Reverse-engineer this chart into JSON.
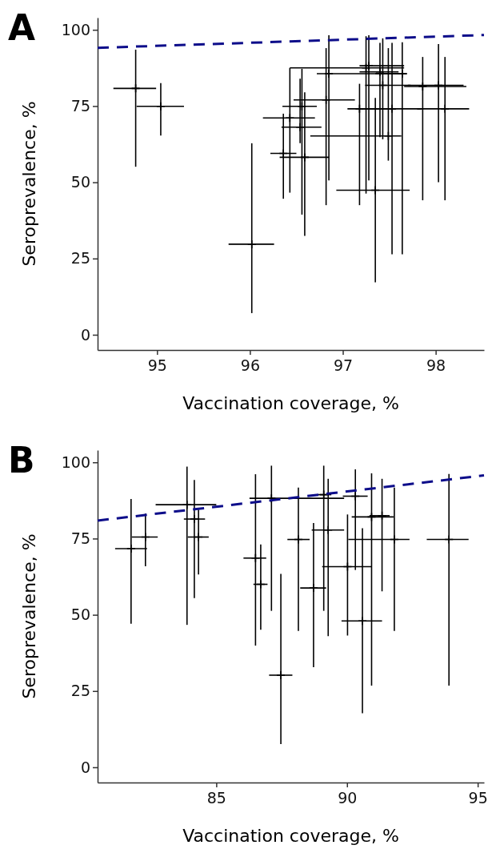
{
  "chart_data": [
    {
      "type": "scatter",
      "title": "A",
      "xlabel": "Vaccination coverage, %",
      "ylabel": "Seroprevalence, %",
      "xlim": [
        94.36,
        98.52
      ],
      "ylim": [
        -5,
        104
      ],
      "xticks": [
        95,
        96,
        97,
        98
      ],
      "yticks": [
        0,
        25,
        50,
        75,
        100
      ],
      "series": [
        {
          "marker": "cross",
          "color": "#000000",
          "x": [
            94.77,
            95.04,
            96.02,
            96.36,
            96.43,
            96.54,
            96.56,
            96.59,
            96.82,
            96.85,
            97.18,
            97.25,
            97.28,
            97.35,
            97.4,
            97.43,
            97.49,
            97.53,
            97.64,
            97.86,
            98.03,
            98.1
          ],
          "values": [
            80.8,
            74.9,
            29.7,
            59.5,
            71.1,
            68.1,
            74.9,
            58.2,
            77,
            85.6,
            74.1,
            87.5,
            88.2,
            47.4,
            86.2,
            81.8,
            65.2,
            74.1,
            85.6,
            81.4,
            81.8,
            74.1
          ],
          "errors": [
            [
              55.1,
              93.5
            ],
            [
              65.3,
              82.5
            ],
            [
              7.1,
              62.8
            ],
            [
              44.6,
              72.5
            ],
            [
              46.6,
              87.5
            ],
            [
              62.8,
              84
            ],
            [
              39.4,
              87.2
            ],
            [
              32.4,
              79.5
            ],
            [
              42.5,
              94
            ],
            [
              50.6,
              98.2
            ],
            [
              42.5,
              82.3
            ],
            [
              46.3,
              97.9
            ],
            [
              50.6,
              98.2
            ],
            [
              17.2,
              77.7
            ],
            [
              64.8,
              95.7
            ],
            [
              64.1,
              97.2
            ],
            [
              57.1,
              94
            ],
            [
              26.4,
              95.7
            ],
            [
              26.4,
              95.9
            ],
            [
              44.1,
              91.1
            ],
            [
              50,
              95.3
            ],
            [
              44.1,
              91.1
            ]
          ],
          "xerrors": [
            [
              94.53,
              94.99
            ],
            [
              94.78,
              95.29
            ],
            [
              95.77,
              96.26
            ],
            [
              96.22,
              96.5
            ],
            [
              96.14,
              96.7
            ],
            [
              96.34,
              96.77
            ],
            [
              96.35,
              96.72
            ],
            [
              96.32,
              96.85
            ],
            [
              96.47,
              97.13
            ],
            [
              96.72,
              97.69
            ],
            [
              97.05,
              97.57
            ],
            [
              96.43,
              97.66
            ],
            [
              97.18,
              97.66
            ],
            [
              96.93,
              97.72
            ],
            [
              97.18,
              97.6
            ],
            [
              97.24,
              97.73
            ],
            [
              96.65,
              97.63
            ],
            [
              97.2,
              97.85
            ],
            [
              97.35,
              97.69
            ],
            [
              97.66,
              98.33
            ],
            [
              97.7,
              98.3
            ],
            [
              97.8,
              98.36
            ]
          ]
        },
        {
          "type": "line",
          "color": "#0d0d8a",
          "line_style": "dashed",
          "x": [
            94.36,
            98.52
          ],
          "values": [
            94.1,
            98.3
          ]
        }
      ]
    },
    {
      "type": "scatter",
      "title": "B",
      "xlabel": "Vaccination coverage, %",
      "ylabel": "Seroprevalence, %",
      "xlim": [
        80.46,
        95.24
      ],
      "ylim": [
        -5,
        104
      ],
      "xticks": [
        85,
        90,
        95
      ],
      "yticks": [
        0,
        25,
        50,
        75,
        100
      ],
      "series": [
        {
          "marker": "cross",
          "color": "#000000",
          "x": [
            81.74,
            82.29,
            83.88,
            84.16,
            84.32,
            86.5,
            86.7,
            87.11,
            87.47,
            88.14,
            88.72,
            89.11,
            89.28,
            90.02,
            90.32,
            90.59,
            90.94,
            91.34,
            91.81,
            93.9
          ],
          "values": [
            71.7,
            75.5,
            86.1,
            81.4,
            75.5,
            68.6,
            60,
            88.2,
            30.2,
            74.7,
            58.8,
            89.4,
            77.8,
            65.8,
            88.9,
            48,
            82.1,
            82.5,
            74.7,
            74.7
          ],
          "errors": [
            [
              47.1,
              88
            ],
            [
              65.9,
              83.2
            ],
            [
              46.7,
              98.6
            ],
            [
              55.5,
              94.2
            ],
            [
              63.2,
              84.5
            ],
            [
              39.9,
              96.1
            ],
            [
              45.1,
              73.1
            ],
            [
              51.3,
              98.9
            ],
            [
              7.6,
              63.4
            ],
            [
              44.7,
              91.7
            ],
            [
              32.8,
              80.1
            ],
            [
              51.3,
              98.9
            ],
            [
              43,
              94.6
            ],
            [
              43.2,
              82.9
            ],
            [
              64.7,
              97.7
            ],
            [
              17.7,
              78.4
            ],
            [
              26.8,
              96.4
            ],
            [
              57.7,
              94.6
            ],
            [
              44.7,
              91.7
            ],
            [
              26.8,
              96.2
            ]
          ],
          "xerrors": [
            [
              81.13,
              82.35
            ],
            [
              81.77,
              82.76
            ],
            [
              82.68,
              85
            ],
            [
              83.76,
              84.57
            ],
            [
              83.91,
              84.71
            ],
            [
              86.04,
              86.91
            ],
            [
              86.42,
              86.96
            ],
            [
              86.27,
              89.89
            ],
            [
              87.02,
              87.91
            ],
            [
              87.72,
              88.57
            ],
            [
              88.21,
              89.2
            ],
            [
              88.9,
              89.4
            ],
            [
              88.65,
              89.89
            ],
            [
              89.05,
              90.93
            ],
            [
              89.84,
              90.79
            ],
            [
              89.79,
              91.34
            ],
            [
              90.18,
              91.78
            ],
            [
              90.86,
              91.63
            ],
            [
              90.05,
              92.39
            ],
            [
              93.05,
              94.65
            ]
          ]
        },
        {
          "type": "line",
          "color": "#0d0d8a",
          "line_style": "dashed",
          "x": [
            80.46,
            95.24
          ],
          "values": [
            80.9,
            95.7
          ]
        }
      ]
    }
  ]
}
